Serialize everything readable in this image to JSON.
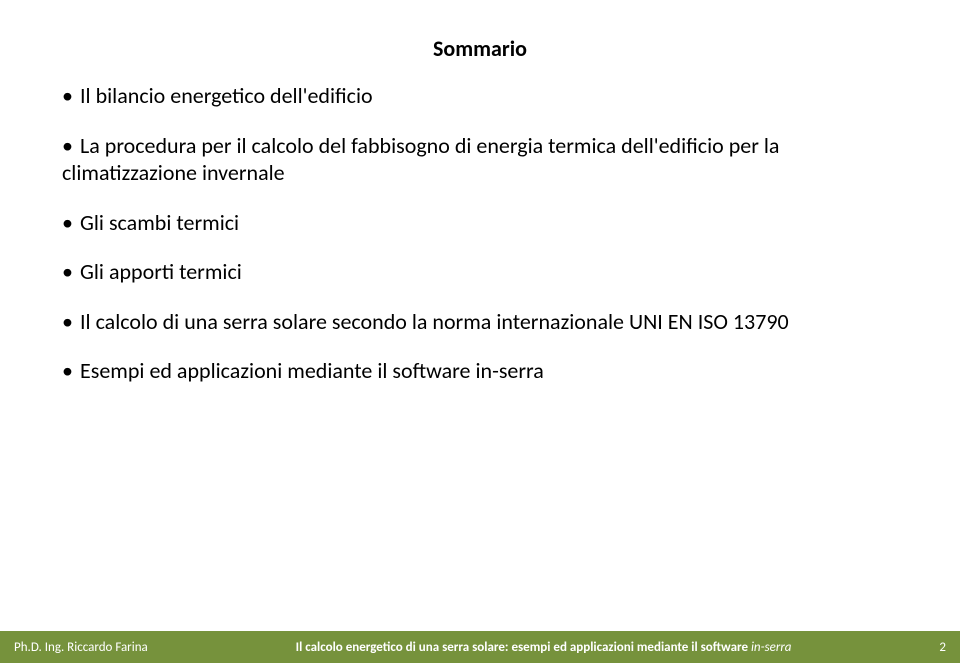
{
  "title": "Sommario",
  "bullets": [
    "Il bilancio energetico dell'edificio",
    "La procedura per il calcolo del fabbisogno di energia termica dell'edificio per la climatizzazione invernale",
    "Gli scambi termici",
    "Gli apporti termici",
    "Il calcolo di una serra solare secondo la norma internazionale UNI EN ISO 13790",
    "Esempi ed applicazioni mediante il software in-serra"
  ],
  "footer": {
    "author": "Ph.D. Ing. Riccardo Farina",
    "title_bold": "Il calcolo energetico di una serra solare: esempi ed applicazioni mediante il software ",
    "title_italic_suffix": "in-serra",
    "page": "2"
  },
  "style": {
    "footer_bg": "#76923c",
    "footer_text": "#ffffff",
    "body_text": "#000000",
    "title_fontsize": 22,
    "bullet_fontsize": 22,
    "footer_fontsize": 13,
    "bullet_char": "•"
  }
}
